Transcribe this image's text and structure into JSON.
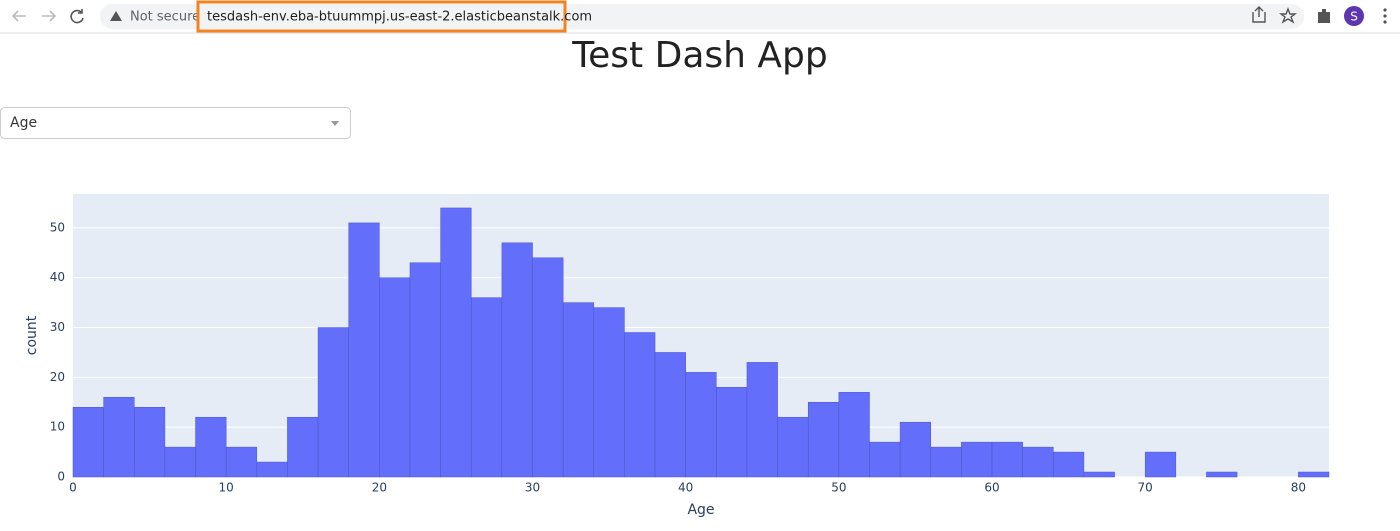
{
  "browser": {
    "security": "Not secure",
    "url": "tesdash-env.eba-btuummpj.us-east-2.elasticbeanstalk.com",
    "profile_initial": "S"
  },
  "page": {
    "title": "Test Dash App",
    "dropdown": "Age"
  },
  "chart_data": {
    "type": "histogram",
    "x_label": "Age",
    "y_label": "count",
    "color": "#636efa",
    "bins": [
      0,
      2,
      4,
      6,
      8,
      10,
      12,
      14,
      16,
      18,
      20,
      22,
      24,
      26,
      28,
      30,
      32,
      34,
      36,
      38,
      40,
      42,
      44,
      46,
      48,
      50,
      52,
      54,
      56,
      58,
      60,
      62,
      64,
      66,
      68,
      70,
      72,
      74,
      76,
      78,
      80,
      82
    ],
    "values": [
      14,
      16,
      14,
      6,
      12,
      6,
      3,
      12,
      30,
      51,
      40,
      43,
      54,
      36,
      47,
      44,
      35,
      34,
      29,
      25,
      21,
      18,
      23,
      12,
      15,
      17,
      7,
      11,
      6,
      7,
      7,
      6,
      5,
      1,
      0,
      5,
      0,
      1,
      0,
      0,
      1
    ],
    "xlim": [
      0,
      82
    ],
    "ylim": [
      0,
      56.8
    ],
    "xticks": [
      0,
      10,
      20,
      30,
      40,
      50,
      60,
      70,
      80
    ],
    "yticks": [
      0,
      10,
      20,
      30,
      40,
      50
    ],
    "grid": true
  }
}
